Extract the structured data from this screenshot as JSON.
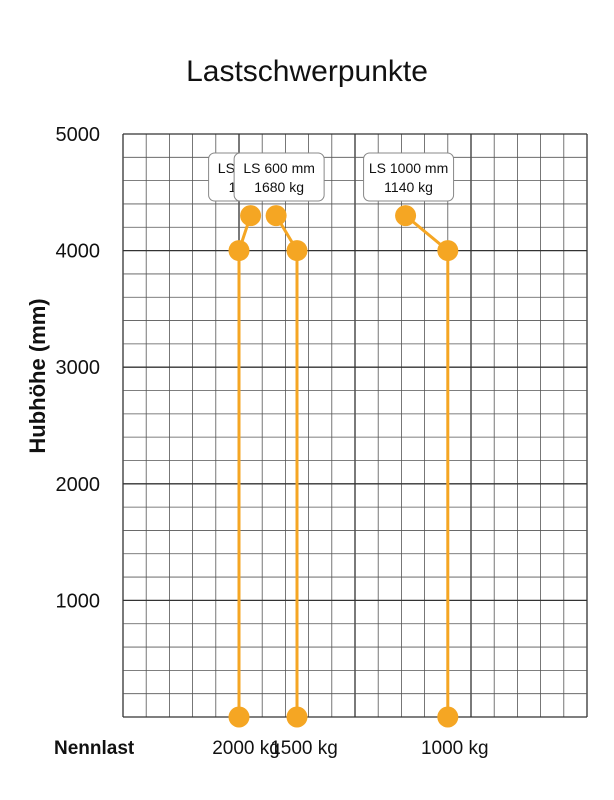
{
  "chart_data": {
    "type": "line",
    "title": "Lastschwerpunkte",
    "ylabel": "Hubhöhe (mm)",
    "xlabel": "Nennlast",
    "ylim": [
      0,
      5000
    ],
    "y_ticks": [
      1000,
      2000,
      3000,
      4000,
      5000
    ],
    "x_ticks": [
      "2000 kg",
      "1500 kg",
      "1000 kg"
    ],
    "grid": true,
    "series": [
      {
        "name": "LS 500 mm",
        "capacity_label": "1900 kg",
        "x": [
          2000,
          2000,
          1900
        ],
        "y": [
          0,
          4000,
          4300
        ]
      },
      {
        "name": "LS 600 mm",
        "capacity_label": "1680 kg",
        "x": [
          1500,
          1500,
          1680
        ],
        "y": [
          0,
          4000,
          4300
        ]
      },
      {
        "name": "LS 1000 mm",
        "capacity_label": "1140 kg",
        "x": [
          1000,
          1000,
          1140
        ],
        "y": [
          0,
          4000,
          4300
        ]
      }
    ],
    "color": "#F5A623"
  }
}
